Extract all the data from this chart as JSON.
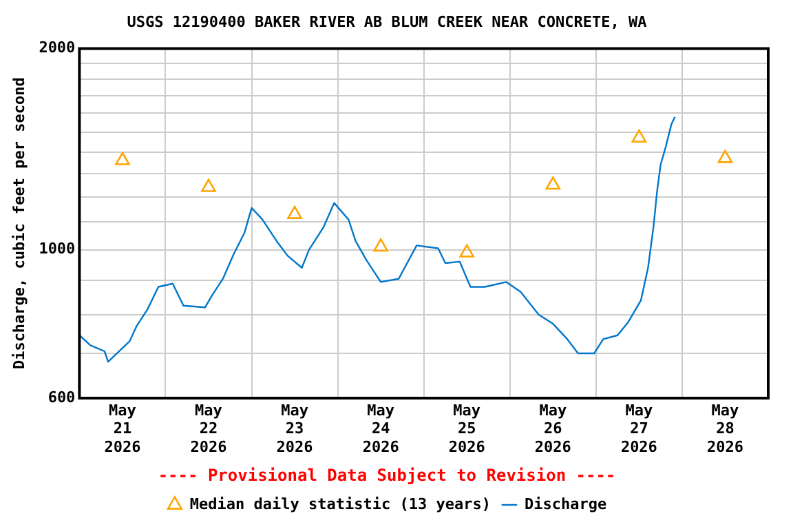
{
  "chart_data": {
    "type": "line",
    "title": "USGS 12190400 BAKER RIVER AB BLUM CREEK NEAR CONCRETE, WA",
    "ylabel": "Discharge, cubic feet per second",
    "annotations": [
      "---- Provisional Data Subject to Revision ----"
    ],
    "log": true,
    "grid": true,
    "legend": "bottom",
    "xlim": [
      "2026-05-21T00:00",
      "2026-05-29T00:00"
    ],
    "xticks": [
      {
        "value": "2026-05-21T12:00",
        "label": "May\n21\n2026"
      },
      {
        "value": "2026-05-22T00:00",
        "label": null
      },
      {
        "value": "2026-05-22T12:00",
        "label": "May\n22\n2026"
      },
      {
        "value": "2026-05-23T00:00",
        "label": null
      },
      {
        "value": "2026-05-23T12:00",
        "label": "May\n23\n2026"
      },
      {
        "value": "2026-05-24T00:00",
        "label": null
      },
      {
        "value": "2026-05-24T12:00",
        "label": "May\n24\n2026"
      },
      {
        "value": "2026-05-25T00:00",
        "label": null
      },
      {
        "value": "2026-05-25T12:00",
        "label": "May\n25\n2026"
      },
      {
        "value": "2026-05-26T00:00",
        "label": null
      },
      {
        "value": "2026-05-26T12:00",
        "label": "May\n26\n2026"
      },
      {
        "value": "2026-05-27T00:00",
        "label": null
      },
      {
        "value": "2026-05-27T12:00",
        "label": "May\n27\n2026"
      },
      {
        "value": "2026-05-28T00:00",
        "label": null
      },
      {
        "value": "2026-05-28T12:00",
        "label": "May\n28\n2026"
      }
    ],
    "ylim": [
      600,
      2000
    ],
    "yticks": [
      600,
      {
        "value": 700,
        "label": null
      },
      {
        "value": 800,
        "label": null
      },
      {
        "value": 900,
        "label": null
      },
      1000,
      {
        "value": 1100,
        "label": null
      },
      {
        "value": 1200,
        "label": null
      },
      {
        "value": 1300,
        "label": null
      },
      {
        "value": 1400,
        "label": null
      },
      {
        "value": 1500,
        "label": null
      },
      {
        "value": 1600,
        "label": null
      },
      {
        "value": 1700,
        "label": null
      },
      {
        "value": 1800,
        "label": null
      },
      {
        "value": 1900,
        "label": null
      },
      2000
    ],
    "series": [
      {
        "name": "Median daily statistic (13 years)",
        "type": "scatter",
        "marker": "triangle",
        "color": "#ffa500",
        "x": [
          "2026-05-21T12:00",
          "2026-05-22T12:00",
          "2026-05-23T12:00",
          "2026-05-24T12:00",
          "2026-05-25T12:00",
          "2026-05-26T12:00",
          "2026-05-27T12:00",
          "2026-05-28T12:00"
        ],
        "values": [
          1360,
          1240,
          1130,
          1010,
          990,
          1250,
          1470,
          1370
        ]
      },
      {
        "name": "Discharge",
        "marker": "none",
        "color": "#0077cc",
        "x": [
          "2026-05-21T00:00",
          "2026-05-21T03:00",
          "2026-05-21T07:00",
          "2026-05-21T08:00",
          "2026-05-21T14:00",
          "2026-05-21T16:00",
          "2026-05-21T19:00",
          "2026-05-21T22:00",
          "2026-05-22T02:00",
          "2026-05-22T05:00",
          "2026-05-22T11:00",
          "2026-05-22T13:00",
          "2026-05-22T16:00",
          "2026-05-22T19:00",
          "2026-05-22T22:00",
          "2026-05-23T00:00",
          "2026-05-23T03:00",
          "2026-05-23T07:00",
          "2026-05-23T10:00",
          "2026-05-23T14:00",
          "2026-05-23T16:00",
          "2026-05-23T20:00",
          "2026-05-23T23:00",
          "2026-05-24T03:00",
          "2026-05-24T05:00",
          "2026-05-24T08:00",
          "2026-05-24T12:00",
          "2026-05-24T17:00",
          "2026-05-24T22:00",
          "2026-05-25T04:00",
          "2026-05-25T06:00",
          "2026-05-25T10:00",
          "2026-05-25T13:00",
          "2026-05-25T17:00",
          "2026-05-25T23:00",
          "2026-05-26T03:00",
          "2026-05-26T08:00",
          "2026-05-26T12:00",
          "2026-05-26T16:00",
          "2026-05-26T19:00",
          "2026-05-26T23:30",
          "2026-05-27T02:00",
          "2026-05-27T06:00",
          "2026-05-27T09:00",
          "2026-05-27T12:30",
          "2026-05-27T14:30",
          "2026-05-27T16:00",
          "2026-05-27T17:00",
          "2026-05-27T18:00",
          "2026-05-27T19:30",
          "2026-05-27T21:00",
          "2026-05-27T22:00"
        ],
        "values": [
          745,
          720,
          705,
          680,
          730,
          770,
          815,
          880,
          890,
          825,
          820,
          855,
          905,
          985,
          1060,
          1155,
          1110,
          1030,
          980,
          940,
          1000,
          1080,
          1175,
          1110,
          1030,
          965,
          895,
          905,
          1015,
          1005,
          955,
          960,
          880,
          880,
          895,
          865,
          800,
          775,
          735,
          700,
          700,
          735,
          745,
          780,
          840,
          940,
          1080,
          1220,
          1340,
          1430,
          1540,
          1580
        ]
      }
    ]
  }
}
